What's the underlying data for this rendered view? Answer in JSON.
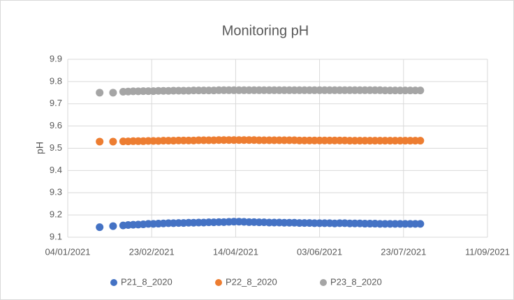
{
  "chart_data": {
    "type": "scatter",
    "title": "Monitoring pH",
    "y_label": "pH",
    "x": [
      "2021-01-23",
      "2021-01-31",
      "2021-02-06",
      "2021-02-09",
      "2021-02-12",
      "2021-02-15",
      "2021-02-18",
      "2021-02-21",
      "2021-02-24",
      "2021-02-27",
      "2021-03-02",
      "2021-03-05",
      "2021-03-08",
      "2021-03-11",
      "2021-03-14",
      "2021-03-17",
      "2021-03-20",
      "2021-03-23",
      "2021-03-26",
      "2021-03-29",
      "2021-04-01",
      "2021-04-04",
      "2021-04-07",
      "2021-04-10",
      "2021-04-13",
      "2021-04-16",
      "2021-04-19",
      "2021-04-22",
      "2021-04-25",
      "2021-04-28",
      "2021-05-01",
      "2021-05-04",
      "2021-05-07",
      "2021-05-10",
      "2021-05-13",
      "2021-05-16",
      "2021-05-19",
      "2021-05-22",
      "2021-05-25",
      "2021-05-28",
      "2021-05-31",
      "2021-06-03",
      "2021-06-06",
      "2021-06-09",
      "2021-06-12",
      "2021-06-15",
      "2021-06-18",
      "2021-06-21",
      "2021-06-24",
      "2021-06-27",
      "2021-06-30",
      "2021-07-03",
      "2021-07-06",
      "2021-07-09",
      "2021-07-12",
      "2021-07-15",
      "2021-07-18",
      "2021-07-21",
      "2021-07-24",
      "2021-07-27",
      "2021-07-30",
      "2021-08-02"
    ],
    "series": [
      {
        "name": "P21_8_2020",
        "color": "#4472c4",
        "values": [
          9.145,
          9.15,
          9.153,
          9.155,
          9.156,
          9.157,
          9.158,
          9.16,
          9.16,
          9.161,
          9.162,
          9.163,
          9.163,
          9.164,
          9.164,
          9.165,
          9.165,
          9.166,
          9.166,
          9.167,
          9.167,
          9.168,
          9.168,
          9.169,
          9.17,
          9.17,
          9.169,
          9.168,
          9.168,
          9.167,
          9.167,
          9.166,
          9.166,
          9.166,
          9.165,
          9.165,
          9.165,
          9.164,
          9.164,
          9.164,
          9.163,
          9.163,
          9.163,
          9.163,
          9.162,
          9.163,
          9.163,
          9.162,
          9.162,
          9.162,
          9.161,
          9.161,
          9.161,
          9.16,
          9.16,
          9.16,
          9.16,
          9.16,
          9.16,
          9.16,
          9.16,
          9.16
        ]
      },
      {
        "name": "P22_8_2020",
        "color": "#ed7d31",
        "values": [
          9.53,
          9.53,
          9.531,
          9.531,
          9.532,
          9.532,
          9.532,
          9.533,
          9.533,
          9.533,
          9.534,
          9.534,
          9.534,
          9.535,
          9.535,
          9.535,
          9.535,
          9.536,
          9.536,
          9.536,
          9.536,
          9.537,
          9.537,
          9.537,
          9.537,
          9.537,
          9.537,
          9.537,
          9.537,
          9.536,
          9.536,
          9.536,
          9.536,
          9.536,
          9.536,
          9.536,
          9.536,
          9.535,
          9.535,
          9.535,
          9.535,
          9.535,
          9.535,
          9.535,
          9.535,
          9.535,
          9.535,
          9.534,
          9.534,
          9.534,
          9.534,
          9.534,
          9.534,
          9.534,
          9.534,
          9.534,
          9.534,
          9.534,
          9.534,
          9.534,
          9.534,
          9.534
        ]
      },
      {
        "name": "P23_8_2020",
        "color": "#a5a5a5",
        "values": [
          9.75,
          9.75,
          9.754,
          9.755,
          9.756,
          9.756,
          9.757,
          9.757,
          9.757,
          9.758,
          9.758,
          9.758,
          9.759,
          9.759,
          9.759,
          9.759,
          9.76,
          9.76,
          9.76,
          9.76,
          9.76,
          9.761,
          9.761,
          9.761,
          9.761,
          9.761,
          9.761,
          9.761,
          9.761,
          9.761,
          9.761,
          9.761,
          9.761,
          9.761,
          9.761,
          9.761,
          9.761,
          9.761,
          9.761,
          9.761,
          9.761,
          9.761,
          9.761,
          9.761,
          9.761,
          9.761,
          9.761,
          9.761,
          9.761,
          9.761,
          9.761,
          9.761,
          9.761,
          9.761,
          9.76,
          9.76,
          9.76,
          9.76,
          9.76,
          9.76,
          9.76,
          9.76
        ]
      }
    ],
    "xlim": [
      "2021-01-04",
      "2021-09-11"
    ],
    "xticks": [
      {
        "value": "2021-01-04",
        "label": "04/01/2021"
      },
      {
        "value": "2021-02-23",
        "label": "23/02/2021"
      },
      {
        "value": "2021-04-14",
        "label": "14/04/2021"
      },
      {
        "value": "2021-06-03",
        "label": "03/06/2021"
      },
      {
        "value": "2021-07-23",
        "label": "23/07/2021"
      },
      {
        "value": "2021-09-11",
        "label": "11/09/2021"
      }
    ],
    "ylim": [
      9.1,
      9.9
    ],
    "yticks": [
      9.1,
      9.2,
      9.3,
      9.4,
      9.5,
      9.6,
      9.7,
      9.8,
      9.9
    ],
    "grid": true,
    "legend": "bottom"
  }
}
